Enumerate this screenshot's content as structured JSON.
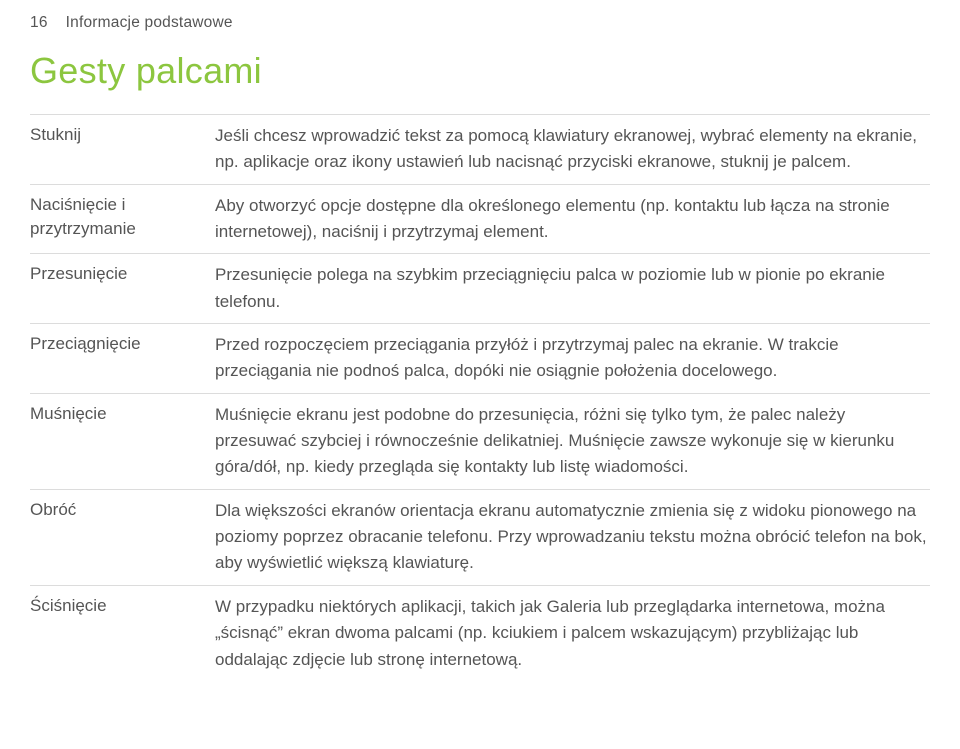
{
  "header": {
    "page_number": "16",
    "section": "Informacje podstawowe"
  },
  "heading": "Gesty palcami",
  "rows": [
    {
      "term": "Stuknij",
      "desc": "Jeśli chcesz wprowadzić tekst za pomocą klawiatury ekranowej, wybrać elementy na ekranie, np. aplikacje oraz ikony ustawień lub nacisnąć przyciski ekranowe, stuknij je palcem."
    },
    {
      "term": "Naciśnięcie i przytrzymanie",
      "desc": "Aby otworzyć opcje dostępne dla określonego elementu (np. kontaktu lub łącza na stronie internetowej), naciśnij i przytrzymaj element."
    },
    {
      "term": "Przesunięcie",
      "desc": "Przesunięcie polega na szybkim przeciągnięciu palca w poziomie lub w pionie po ekranie telefonu."
    },
    {
      "term": "Przeciągnięcie",
      "desc": "Przed rozpoczęciem przeciągania przyłóż i przytrzymaj palec na ekranie. W trakcie przeciągania nie podnoś palca, dopóki nie osiągnie położenia docelowego."
    },
    {
      "term": "Muśnięcie",
      "desc": "Muśnięcie ekranu jest podobne do przesunięcia, różni się tylko tym, że palec należy przesuwać szybciej i równocześnie delikatniej. Muśnięcie zawsze wykonuje się w kierunku góra/dół, np. kiedy przegląda się kontakty lub listę wiadomości."
    },
    {
      "term": "Obróć",
      "desc": "Dla większości ekranów orientacja ekranu automatycznie zmienia się z widoku pionowego na poziomy poprzez obracanie telefonu. Przy wprowadzaniu tekstu można obrócić telefon na bok, aby wyświetlić większą klawiaturę."
    },
    {
      "term": "Ściśnięcie",
      "desc": "W przypadku niektórych aplikacji, takich jak Galeria lub przeglądarka internetowa, można „ścisnąć” ekran dwoma palcami (np. kciukiem i palcem wskazującym) przybliżając lub oddalając zdjęcie lub stronę internetową."
    }
  ],
  "style": {
    "accent_color": "#8cc63f",
    "text_color": "#555555",
    "rule_color": "#dcdcdc",
    "background": "#ffffff"
  }
}
